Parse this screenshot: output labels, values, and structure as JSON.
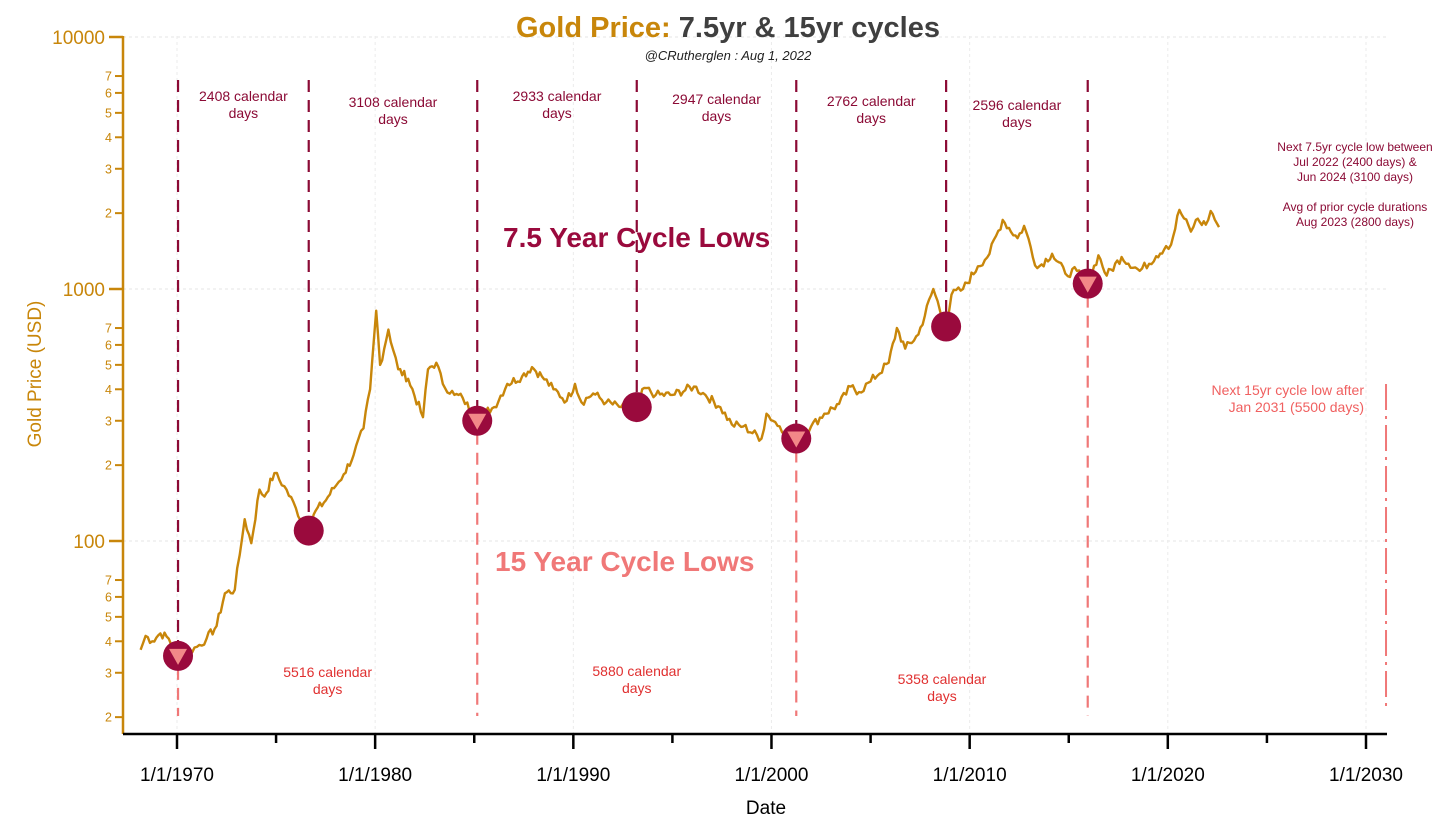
{
  "title": {
    "accent": "Gold Price:",
    "rest": "7.5yr & 15yr cycles"
  },
  "subtitle": "@CRutherglen : Aug 1, 2022",
  "colors": {
    "price": "#c8860a",
    "cycle75": "#8b0a35",
    "cycle15": "#f07878",
    "axis_text": "#c8860a"
  },
  "chart_data": {
    "type": "line",
    "xlabel": "Date",
    "ylabel": "Gold Price (USD)",
    "yscale": "log",
    "ylim": [
      18,
      12000
    ],
    "xlim": [
      "1967-01-01",
      "2031-03-01"
    ],
    "x_ticks": [
      "1/1/1970",
      "1/1/1980",
      "1/1/1990",
      "1/1/2000",
      "1/1/2010",
      "1/1/2020",
      "1/1/2030"
    ],
    "x_tick_dates": [
      "1970-01-01",
      "1980-01-01",
      "1990-01-01",
      "2000-01-01",
      "2010-01-01",
      "2020-01-01",
      "2030-01-01"
    ],
    "y_major_ticks": [
      100,
      1000,
      10000
    ],
    "y_major_labels": [
      "100",
      "1000",
      "10000"
    ],
    "y_minor_ticks": [
      2,
      3,
      4,
      5,
      6,
      7,
      20,
      30,
      40,
      50,
      60,
      70,
      200,
      300,
      400,
      500,
      600,
      700,
      2000,
      3000,
      4000,
      5000,
      6000,
      7000
    ],
    "y_minor_labels": [
      "2",
      "3",
      "4",
      "5",
      "6",
      "7",
      "2",
      "3",
      "4",
      "5",
      "6",
      "7",
      "2",
      "3",
      "4",
      "5",
      "6",
      "7",
      "2",
      "3",
      "4",
      "5",
      "6",
      "7"
    ],
    "grid": true,
    "series": [
      {
        "values": [
          [
            "1968-03-01",
            37
          ],
          [
            "1968-06-01",
            42
          ],
          [
            "1968-10-01",
            40
          ],
          [
            "1969-03-01",
            43
          ],
          [
            "1969-08-01",
            41
          ],
          [
            "1970-01-01",
            35
          ],
          [
            "1970-06-01",
            36
          ],
          [
            "1971-01-01",
            38
          ],
          [
            "1971-07-01",
            41
          ],
          [
            "1972-01-01",
            46
          ],
          [
            "1972-06-01",
            62
          ],
          [
            "1972-12-01",
            64
          ],
          [
            "1973-03-01",
            88
          ],
          [
            "1973-06-01",
            122
          ],
          [
            "1973-10-01",
            98
          ],
          [
            "1974-03-01",
            160
          ],
          [
            "1974-06-01",
            150
          ],
          [
            "1974-12-01",
            186
          ],
          [
            "1975-06-01",
            165
          ],
          [
            "1976-01-01",
            135
          ],
          [
            "1976-08-01",
            108
          ],
          [
            "1977-01-01",
            132
          ],
          [
            "1977-06-01",
            142
          ],
          [
            "1977-12-01",
            162
          ],
          [
            "1978-06-01",
            184
          ],
          [
            "1978-12-01",
            220
          ],
          [
            "1979-06-01",
            280
          ],
          [
            "1979-10-01",
            400
          ],
          [
            "1980-01-21",
            820
          ],
          [
            "1980-04-01",
            500
          ],
          [
            "1980-09-01",
            690
          ],
          [
            "1981-03-01",
            480
          ],
          [
            "1981-09-01",
            440
          ],
          [
            "1982-06-01",
            310
          ],
          [
            "1982-09-01",
            480
          ],
          [
            "1983-02-01",
            510
          ],
          [
            "1983-06-01",
            420
          ],
          [
            "1984-01-01",
            380
          ],
          [
            "1984-06-01",
            370
          ],
          [
            "1985-02-15",
            300
          ],
          [
            "1985-08-01",
            325
          ],
          [
            "1986-01-01",
            340
          ],
          [
            "1986-09-01",
            420
          ],
          [
            "1987-06-01",
            450
          ],
          [
            "1987-12-01",
            490
          ],
          [
            "1988-06-01",
            450
          ],
          [
            "1989-01-01",
            400
          ],
          [
            "1989-09-01",
            360
          ],
          [
            "1990-02-01",
            420
          ],
          [
            "1990-06-01",
            355
          ],
          [
            "1991-01-01",
            385
          ],
          [
            "1991-09-01",
            355
          ],
          [
            "1992-06-01",
            340
          ],
          [
            "1993-03-01",
            330
          ],
          [
            "1993-08-01",
            405
          ],
          [
            "1994-03-01",
            380
          ],
          [
            "1995-01-01",
            380
          ],
          [
            "1996-02-01",
            410
          ],
          [
            "1996-09-01",
            380
          ],
          [
            "1997-06-01",
            340
          ],
          [
            "1998-01-01",
            290
          ],
          [
            "1998-08-01",
            285
          ],
          [
            "1999-07-01",
            255
          ],
          [
            "1999-10-01",
            320
          ],
          [
            "2000-06-01",
            285
          ],
          [
            "2001-04-01",
            255
          ],
          [
            "2002-01-01",
            285
          ],
          [
            "2002-09-01",
            320
          ],
          [
            "2003-06-01",
            350
          ],
          [
            "2004-01-01",
            410
          ],
          [
            "2004-06-01",
            390
          ],
          [
            "2005-01-01",
            430
          ],
          [
            "2005-12-01",
            510
          ],
          [
            "2006-05-01",
            700
          ],
          [
            "2006-10-01",
            580
          ],
          [
            "2007-06-01",
            660
          ],
          [
            "2008-03-01",
            1000
          ],
          [
            "2008-10-25",
            700
          ],
          [
            "2009-02-01",
            950
          ],
          [
            "2009-09-01",
            1000
          ],
          [
            "2010-06-01",
            1230
          ],
          [
            "2011-01-01",
            1380
          ],
          [
            "2011-09-01",
            1880
          ],
          [
            "2012-06-01",
            1590
          ],
          [
            "2012-10-01",
            1780
          ],
          [
            "2013-06-01",
            1210
          ],
          [
            "2014-03-01",
            1380
          ],
          [
            "2014-11-01",
            1150
          ],
          [
            "2015-06-01",
            1180
          ],
          [
            "2015-12-17",
            1050
          ],
          [
            "2016-07-01",
            1360
          ],
          [
            "2016-12-01",
            1130
          ],
          [
            "2017-09-01",
            1340
          ],
          [
            "2018-08-01",
            1180
          ],
          [
            "2019-06-01",
            1350
          ],
          [
            "2019-12-01",
            1480
          ],
          [
            "2020-03-01",
            1500
          ],
          [
            "2020-08-01",
            2060
          ],
          [
            "2021-03-01",
            1690
          ],
          [
            "2021-06-01",
            1880
          ],
          [
            "2021-12-01",
            1800
          ],
          [
            "2022-03-01",
            2040
          ],
          [
            "2022-08-01",
            1760
          ]
        ]
      }
    ],
    "cycle_lows_75": {
      "label": "7.5 Year Cycle Lows",
      "points": [
        {
          "x": "1970-01-20",
          "y": 35
        },
        {
          "x": "1976-08-25",
          "y": 110
        },
        {
          "x": "1985-02-25",
          "y": 300
        },
        {
          "x": "1993-03-15",
          "y": 340
        },
        {
          "x": "2001-04-02",
          "y": 255
        },
        {
          "x": "2008-10-24",
          "y": 710
        },
        {
          "x": "2015-12-17",
          "y": 1050
        }
      ],
      "intervals": [
        {
          "text": "2408 calendar days"
        },
        {
          "text": "3108 calendar days"
        },
        {
          "text": "2933 calendar days"
        },
        {
          "text": "2947 calendar days"
        },
        {
          "text": "2762 calendar days"
        },
        {
          "text": "2596 calendar days"
        }
      ]
    },
    "cycle_lows_15": {
      "label": "15 Year Cycle Lows",
      "points": [
        {
          "x": "1970-01-20",
          "y": 35
        },
        {
          "x": "1985-02-25",
          "y": 300
        },
        {
          "x": "2001-04-02",
          "y": 255
        },
        {
          "x": "2015-12-17",
          "y": 1050
        }
      ],
      "intervals": [
        {
          "text": "5516 calendar days"
        },
        {
          "text": "5880 calendar days"
        },
        {
          "text": "5358 calendar days"
        }
      ],
      "projected_date": "2031-01-05"
    },
    "annotations": {
      "next75": [
        "Next 7.5yr cycle low between",
        "Jul 2022 (2400 days) &",
        "Jun 2024 (3100 days)",
        "",
        "Avg of prior cycle durations",
        "Aug 2023 (2800 days)"
      ],
      "next15": [
        "Next 15yr cycle low after",
        "Jan 2031 (5500 days)"
      ]
    }
  }
}
